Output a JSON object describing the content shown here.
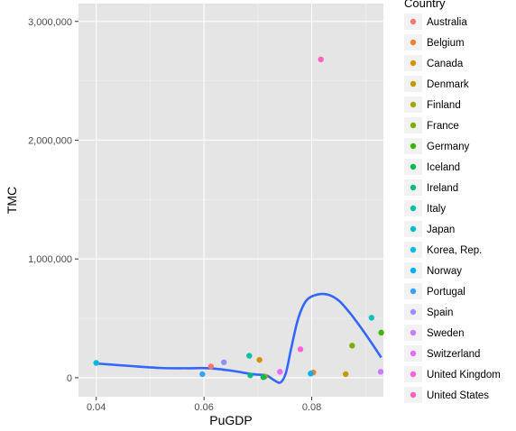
{
  "chart_data": {
    "type": "scatter",
    "xlabel": "PuGDP",
    "ylabel": "TMC",
    "xlim": [
      0.0367,
      0.0933
    ],
    "ylim": [
      -160000,
      3150000
    ],
    "x_ticks": [
      0.04,
      0.06,
      0.08
    ],
    "x_tick_labels": [
      "0.04",
      "0.06",
      "0.08"
    ],
    "y_ticks": [
      0,
      1000000,
      2000000,
      3000000
    ],
    "y_tick_labels": [
      "0",
      "1,000,000",
      "2,000,000",
      "3,000,000"
    ],
    "grid": true,
    "panel_background": "#e5e5e5",
    "legend": {
      "title": "Country",
      "placement": "right"
    },
    "series": [
      {
        "name": "Australia",
        "color": "#f8766d",
        "points": [
          {
            "x": 0.0613,
            "y": 95000
          }
        ]
      },
      {
        "name": "Belgium",
        "color": "#ea8331",
        "points": [
          {
            "x": 0.0803,
            "y": 45000
          }
        ]
      },
      {
        "name": "Canada",
        "color": "#d89000",
        "points": [
          {
            "x": 0.0703,
            "y": 150000
          }
        ]
      },
      {
        "name": "Denmark",
        "color": "#c09b00",
        "points": [
          {
            "x": 0.0863,
            "y": 30000
          }
        ]
      },
      {
        "name": "Finland",
        "color": "#a3a500",
        "points": [
          {
            "x": 0.0713,
            "y": 10000
          }
        ]
      },
      {
        "name": "France",
        "color": "#7cae00",
        "points": [
          {
            "x": 0.0875,
            "y": 270000
          }
        ]
      },
      {
        "name": "Germany",
        "color": "#39b600",
        "points": [
          {
            "x": 0.0929,
            "y": 380000
          }
        ]
      },
      {
        "name": "Iceland",
        "color": "#00bb4e",
        "points": [
          {
            "x": 0.071,
            "y": 5000
          }
        ]
      },
      {
        "name": "Ireland",
        "color": "#00bf7d",
        "points": [
          {
            "x": 0.0686,
            "y": 20000
          }
        ]
      },
      {
        "name": "Italy",
        "color": "#00c1a3",
        "points": [
          {
            "x": 0.0684,
            "y": 185000
          }
        ]
      },
      {
        "name": "Japan",
        "color": "#00bfc4",
        "points": [
          {
            "x": 0.0911,
            "y": 505000
          }
        ]
      },
      {
        "name": "Korea, Rep.",
        "color": "#00bae0",
        "points": [
          {
            "x": 0.04,
            "y": 125000
          }
        ]
      },
      {
        "name": "Norway",
        "color": "#00b0f6",
        "points": [
          {
            "x": 0.0798,
            "y": 35000
          }
        ]
      },
      {
        "name": "Portugal",
        "color": "#35a2ff",
        "points": [
          {
            "x": 0.0597,
            "y": 30000
          }
        ]
      },
      {
        "name": "Spain",
        "color": "#9590ff",
        "points": [
          {
            "x": 0.0637,
            "y": 130000
          }
        ]
      },
      {
        "name": "Sweden",
        "color": "#c77cff",
        "points": [
          {
            "x": 0.0928,
            "y": 50000
          }
        ]
      },
      {
        "name": "Switzerland",
        "color": "#e76bf3",
        "points": [
          {
            "x": 0.0741,
            "y": 50000
          }
        ]
      },
      {
        "name": "United Kingdom",
        "color": "#fa62db",
        "points": [
          {
            "x": 0.0779,
            "y": 240000
          }
        ]
      },
      {
        "name": "United States",
        "color": "#ff62bc",
        "points": [
          {
            "x": 0.0817,
            "y": 2680000
          }
        ]
      }
    ],
    "smooth": {
      "color": "#3366ff",
      "points": [
        {
          "x": 0.04,
          "y": 120000
        },
        {
          "x": 0.046,
          "y": 100000
        },
        {
          "x": 0.052,
          "y": 82000
        },
        {
          "x": 0.057,
          "y": 80000
        },
        {
          "x": 0.061,
          "y": 80000
        },
        {
          "x": 0.065,
          "y": 60000
        },
        {
          "x": 0.069,
          "y": 30000
        },
        {
          "x": 0.0715,
          "y": 20000
        },
        {
          "x": 0.073,
          "y": -20000
        },
        {
          "x": 0.0742,
          "y": -40000
        },
        {
          "x": 0.0752,
          "y": 40000
        },
        {
          "x": 0.0762,
          "y": 250000
        },
        {
          "x": 0.0775,
          "y": 500000
        },
        {
          "x": 0.079,
          "y": 650000
        },
        {
          "x": 0.081,
          "y": 700000
        },
        {
          "x": 0.083,
          "y": 700000
        },
        {
          "x": 0.085,
          "y": 650000
        },
        {
          "x": 0.087,
          "y": 550000
        },
        {
          "x": 0.089,
          "y": 430000
        },
        {
          "x": 0.091,
          "y": 300000
        },
        {
          "x": 0.0929,
          "y": 170000
        }
      ]
    }
  }
}
